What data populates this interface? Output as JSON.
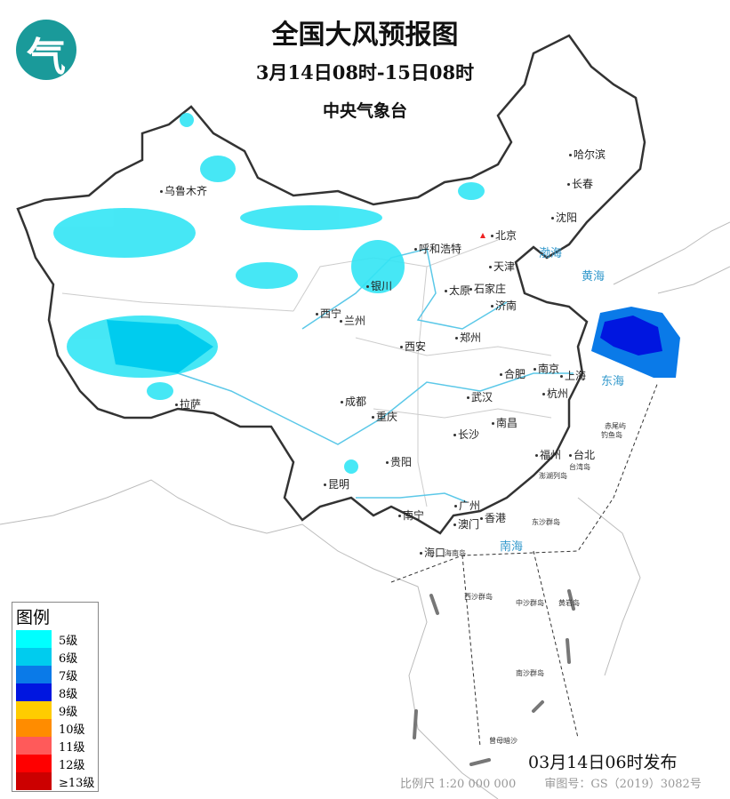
{
  "header": {
    "title": "全国大风预报图",
    "period": "3月14日08时-15日08时",
    "issuer": "中央气象台",
    "logo_icon": "cma-logo"
  },
  "legend": {
    "title": "图例",
    "items": [
      {
        "label": "5级",
        "color": "#00ffff"
      },
      {
        "label": "6级",
        "color": "#00ccee"
      },
      {
        "label": "7级",
        "color": "#0a7ae8"
      },
      {
        "label": "8级",
        "color": "#0016e0"
      },
      {
        "label": "9级",
        "color": "#ffcc00"
      },
      {
        "label": "10级",
        "color": "#ff8c00"
      },
      {
        "label": "11级",
        "color": "#ff5a5a"
      },
      {
        "label": "12级",
        "color": "#ff0000"
      },
      {
        "label": "≥13级",
        "color": "#cc0000"
      }
    ]
  },
  "cities": [
    "乌鲁木齐",
    "哈尔滨",
    "长春",
    "沈阳",
    "北京",
    "呼和浩特",
    "天津",
    "太原",
    "石家庄",
    "济南",
    "银川",
    "西宁",
    "兰州",
    "郑州",
    "西安",
    "合肥",
    "南京",
    "上海",
    "杭州",
    "成都",
    "武汉",
    "拉萨",
    "重庆",
    "南昌",
    "长沙",
    "贵阳",
    "福州",
    "台北",
    "昆明",
    "南宁",
    "广州",
    "澳门",
    "香港",
    "海口"
  ],
  "seas": [
    "渤海",
    "黄海",
    "东海",
    "南海"
  ],
  "islands": [
    "台湾岛",
    "钓鱼岛",
    "赤尾屿",
    "澎湖列岛",
    "东沙群岛",
    "海南岛",
    "西沙群岛",
    "中沙群岛",
    "黄岩岛",
    "南沙群岛",
    "曾母暗沙"
  ],
  "footer": {
    "issued": "03月14日06时发布",
    "scale": "比例尺 1:20 000 000",
    "approval": "审图号：GS（2019）3082号"
  }
}
